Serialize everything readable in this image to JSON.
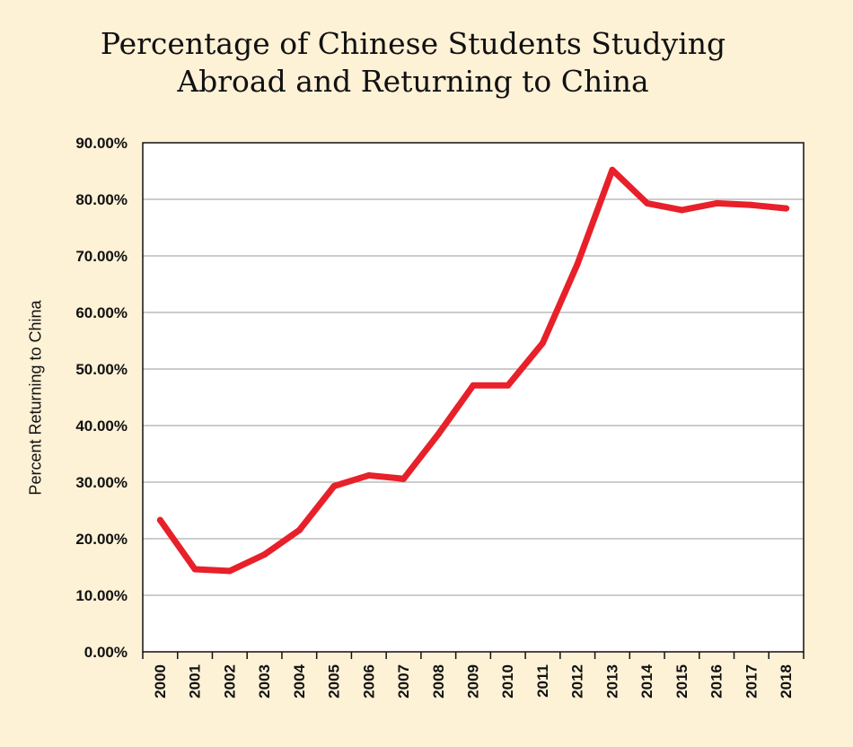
{
  "chart_data": {
    "type": "line",
    "title": [
      "Percentage of Chinese Students Studying",
      "Abroad and Returning to China"
    ],
    "xlabel": "",
    "ylabel": "Percent Returning to China",
    "ylim": [
      0,
      90
    ],
    "yticks": [
      "0.00%",
      "10.00%",
      "20.00%",
      "30.00%",
      "40.00%",
      "50.00%",
      "60.00%",
      "70.00%",
      "80.00%",
      "90.00%"
    ],
    "categories": [
      "2000",
      "2001",
      "2002",
      "2003",
      "2004",
      "2005",
      "2006",
      "2007",
      "2008",
      "2009",
      "2010",
      "2011",
      "2012",
      "2013",
      "2014",
      "2015",
      "2016",
      "2017",
      "2018"
    ],
    "series": [
      {
        "values": [
          23.3,
          14.6,
          14.3,
          17.2,
          21.5,
          29.3,
          31.2,
          30.6,
          38.5,
          47.1,
          47.1,
          54.6,
          68.6,
          85.2,
          79.3,
          78.1,
          79.3,
          79.0,
          78.4
        ]
      }
    ],
    "grid": true,
    "legend": "none",
    "colors": {
      "line": "#e8202a",
      "background": "#fdf1d6",
      "plot_bg": "#ffffff",
      "grid": "#9a9a9a"
    }
  }
}
